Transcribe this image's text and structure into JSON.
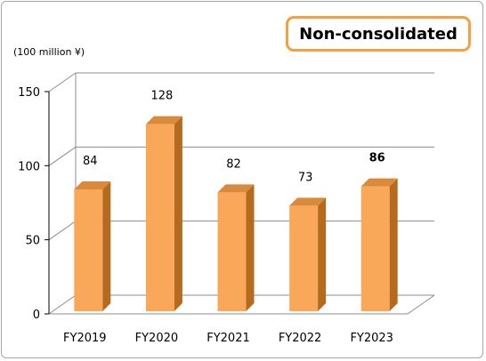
{
  "badge": {
    "text": "Non-consolidated"
  },
  "unit_label": "(100 million ¥)",
  "chart_data": {
    "type": "bar",
    "categories": [
      "FY2019",
      "FY2020",
      "FY2021",
      "FY2022",
      "FY2023"
    ],
    "values": [
      84,
      128,
      82,
      73,
      86
    ],
    "data_labels": [
      "84",
      "128",
      "82",
      "73",
      "86"
    ],
    "ylim": [
      0,
      150
    ],
    "yticks": [
      0,
      50,
      100,
      150
    ],
    "grid": true,
    "bar_color": "#f9a85a",
    "bar_side_color": "#b56a1e",
    "bar_top_color": "#d98a3a",
    "highlight_label_color": "#ff0000",
    "highlight_index": 4
  }
}
